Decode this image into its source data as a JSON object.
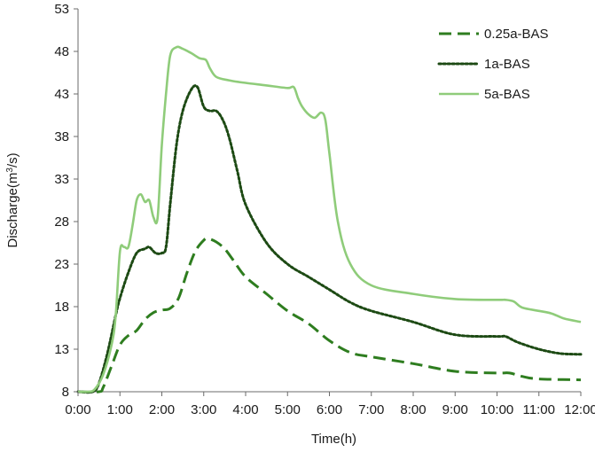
{
  "chart_data": {
    "type": "line",
    "title": "",
    "xlabel": "Time(h)",
    "ylabel": "Discharge(m³/s)",
    "ylabel_parts": {
      "prefix": "Discharge(m",
      "sup": "3",
      "suffix": "/s)"
    },
    "xlim": [
      0,
      12
    ],
    "ylim": [
      8,
      53
    ],
    "xticks": [
      0,
      1,
      2,
      3,
      4,
      5,
      6,
      7,
      8,
      9,
      10,
      11,
      12
    ],
    "xtick_labels": [
      "0:00",
      "1:00",
      "2:00",
      "3:00",
      "4:00",
      "5:00",
      "6:00",
      "7:00",
      "8:00",
      "9:00",
      "10:00",
      "11:00",
      "12:00"
    ],
    "yticks": [
      8,
      13,
      18,
      23,
      28,
      33,
      38,
      43,
      48,
      53
    ],
    "grid": false,
    "legend_position": "top-right",
    "series": [
      {
        "name": "0.25a-BAS",
        "style": "dashed",
        "color": "#2e7d1f",
        "x": [
          0,
          0.5,
          0.6,
          0.8,
          1.0,
          1.2,
          1.4,
          1.6,
          1.8,
          2.0,
          2.2,
          2.4,
          2.6,
          2.8,
          3.0,
          3.1,
          3.3,
          3.5,
          3.7,
          4.0,
          4.5,
          5.0,
          5.5,
          6.0,
          6.5,
          7.0,
          8.0,
          9.0,
          10.0,
          10.3,
          10.6,
          11.0,
          12.0
        ],
        "y": [
          8,
          8,
          8.5,
          11,
          13.5,
          14.6,
          15.2,
          16.5,
          17.3,
          17.6,
          17.8,
          19,
          22,
          24.5,
          25.8,
          26,
          25.6,
          24.8,
          23.5,
          21.5,
          19.5,
          17.5,
          16,
          14,
          12.6,
          12.1,
          11.3,
          10.4,
          10.2,
          10.2,
          9.8,
          9.5,
          9.4
        ]
      },
      {
        "name": "1a-BAS",
        "style": "dotted",
        "color": "#1d4a14",
        "x": [
          0,
          0.35,
          0.5,
          0.7,
          0.9,
          1.0,
          1.2,
          1.4,
          1.6,
          1.7,
          1.85,
          2.0,
          2.1,
          2.2,
          2.35,
          2.5,
          2.7,
          2.85,
          3.0,
          3.15,
          3.3,
          3.45,
          3.6,
          3.8,
          4.0,
          4.5,
          5.0,
          5.5,
          6.0,
          6.5,
          7.0,
          8.0,
          9.0,
          10.0,
          10.2,
          10.5,
          11.0,
          11.5,
          12.0
        ],
        "y": [
          8,
          8,
          9,
          12.5,
          17,
          19,
          22,
          24.3,
          24.8,
          25,
          24.3,
          24.3,
          25,
          30,
          37,
          41,
          43.5,
          43.8,
          41.5,
          41,
          41,
          40,
          38,
          34,
          30,
          25.5,
          23,
          21.5,
          20,
          18.5,
          17.5,
          16.2,
          14.7,
          14.5,
          14.5,
          13.8,
          13,
          12.5,
          12.4
        ]
      },
      {
        "name": "5a-BAS",
        "style": "solid",
        "color": "#8fcc7a",
        "x": [
          0,
          0.25,
          0.4,
          0.6,
          0.8,
          0.9,
          1.0,
          1.1,
          1.2,
          1.3,
          1.4,
          1.5,
          1.6,
          1.7,
          1.8,
          1.9,
          2.0,
          2.1,
          2.2,
          2.35,
          2.5,
          2.7,
          2.9,
          3.05,
          3.15,
          3.3,
          3.6,
          4.0,
          4.5,
          5.0,
          5.15,
          5.25,
          5.35,
          5.5,
          5.65,
          5.8,
          5.9,
          6.0,
          6.2,
          6.5,
          7.0,
          8.0,
          9.0,
          10.0,
          10.2,
          10.4,
          10.6,
          11.0,
          11.3,
          11.6,
          12.0
        ],
        "y": [
          8,
          8,
          8.3,
          10,
          13.5,
          17,
          24.5,
          25,
          25,
          27.5,
          30.5,
          31.2,
          30.3,
          30.5,
          28.5,
          28.5,
          37,
          43,
          47.5,
          48.5,
          48.3,
          47.8,
          47.2,
          47,
          46,
          45,
          44.6,
          44.3,
          44,
          43.7,
          43.8,
          42.5,
          41.5,
          40.6,
          40.2,
          40.8,
          40,
          36,
          28,
          23,
          20.5,
          19.5,
          18.9,
          18.8,
          18.8,
          18.6,
          17.9,
          17.5,
          17.2,
          16.6,
          16.2
        ]
      }
    ]
  }
}
